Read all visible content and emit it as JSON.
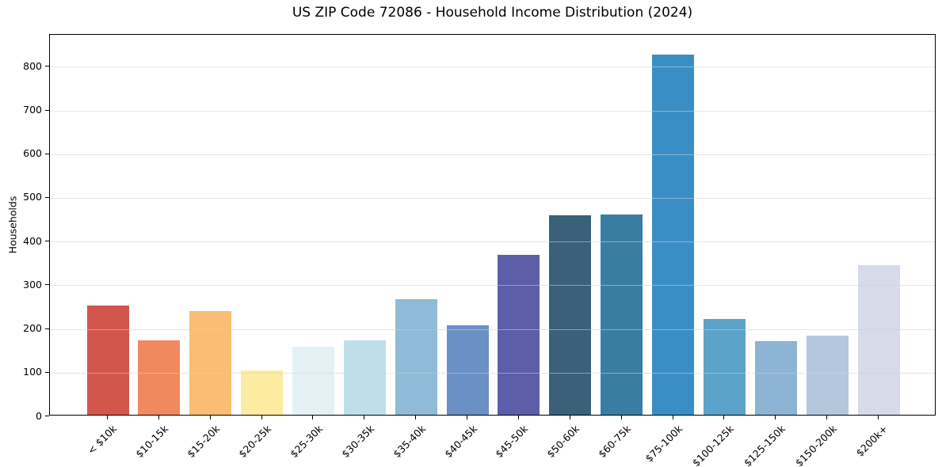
{
  "chart_data": {
    "type": "bar",
    "title": "US ZIP Code 72086 - Household Income Distribution (2024)",
    "xlabel": "",
    "ylabel": "Households",
    "categories": [
      "< $10k",
      "$10-15k",
      "$15-20k",
      "$20-25k",
      "$25-30k",
      "$30-35k",
      "$35-40k",
      "$40-45k",
      "$45-50k",
      "$50-60k",
      "$60-75k",
      "$75-100k",
      "$100-125k",
      "$125-150k",
      "$150-200k",
      "$200k+"
    ],
    "values": [
      250,
      170,
      238,
      102,
      156,
      171,
      264,
      205,
      365,
      456,
      459,
      825,
      220,
      168,
      181,
      342
    ],
    "bar_colors": [
      "#d3564d",
      "#f1895e",
      "#fbbd74",
      "#fdeba1",
      "#e4f1f4",
      "#bedfe9",
      "#8fbad8",
      "#6a90c4",
      "#5c5ea8",
      "#3a607a",
      "#3a7da2",
      "#3a8ec6",
      "#5ba3c9",
      "#8db4d5",
      "#b5c7dd",
      "#d7dae8"
    ],
    "ylim": [
      0,
      873
    ],
    "yticks": [
      0,
      100,
      200,
      300,
      400,
      500,
      600,
      700,
      800
    ],
    "grid": "horizontal-only",
    "gridline_color": "#e5e5e5",
    "background": "#ffffff",
    "x_tick_rotation_deg": 45,
    "legend": "none"
  }
}
